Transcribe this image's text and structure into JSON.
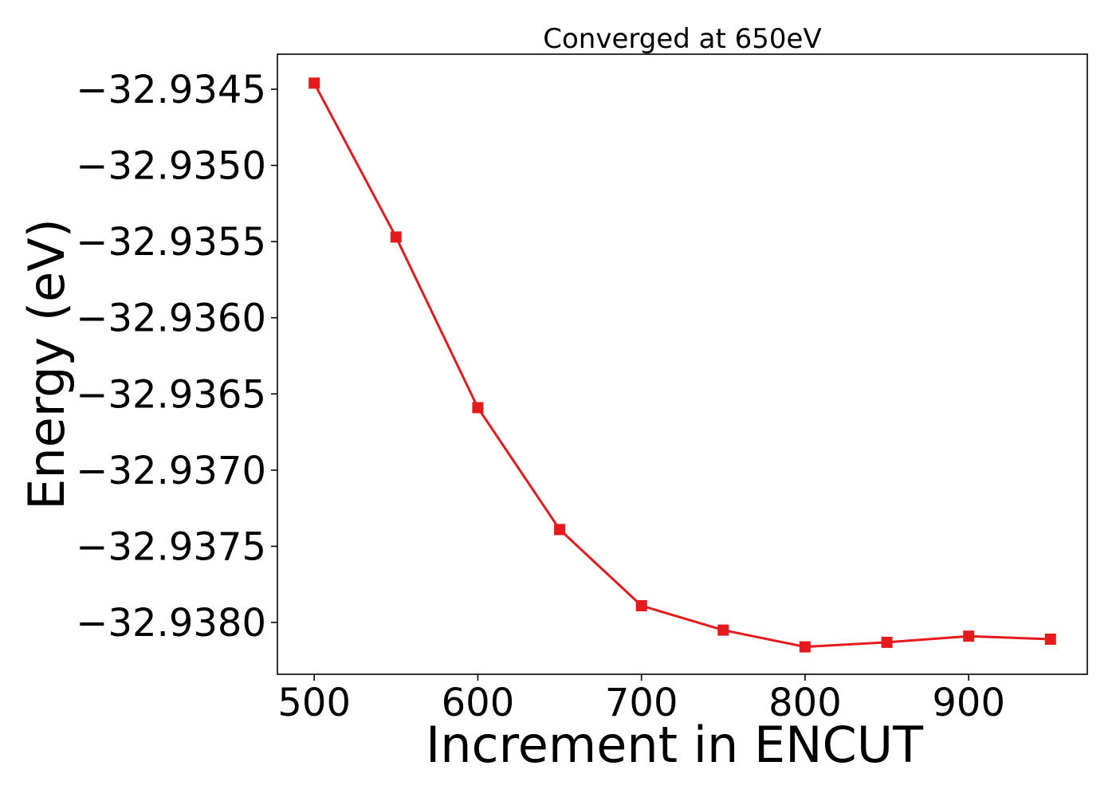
{
  "chart_data": {
    "type": "line",
    "title": "Converged at 650eV",
    "xlabel": "Increment in ENCUT",
    "ylabel": "Energy (eV)",
    "x": [
      500,
      550,
      600,
      650,
      700,
      750,
      800,
      850,
      900,
      950
    ],
    "series": [
      {
        "values": [
          -32.93446,
          -32.93547,
          -32.93659,
          -32.93739,
          -32.93789,
          -32.93805,
          -32.93816,
          -32.93813,
          -32.93809,
          -32.93811
        ],
        "color": "#e41a1c",
        "marker": "square"
      }
    ],
    "xticks": [
      500,
      600,
      700,
      800,
      900
    ],
    "xtick_labels": [
      "500",
      "600",
      "700",
      "800",
      "900"
    ],
    "yticks": [
      -32.9345,
      -32.935,
      -32.9355,
      -32.936,
      -32.9365,
      -32.937,
      -32.9375,
      -32.938
    ],
    "ytick_labels": [
      "−32.9345",
      "−32.9350",
      "−32.9355",
      "−32.9360",
      "−32.9365",
      "−32.9370",
      "−32.9375",
      "−32.9380"
    ],
    "xlim": [
      477.5,
      972.5
    ],
    "ylim": [
      -32.93834,
      -32.93427
    ],
    "grid": false,
    "legend": "none"
  }
}
